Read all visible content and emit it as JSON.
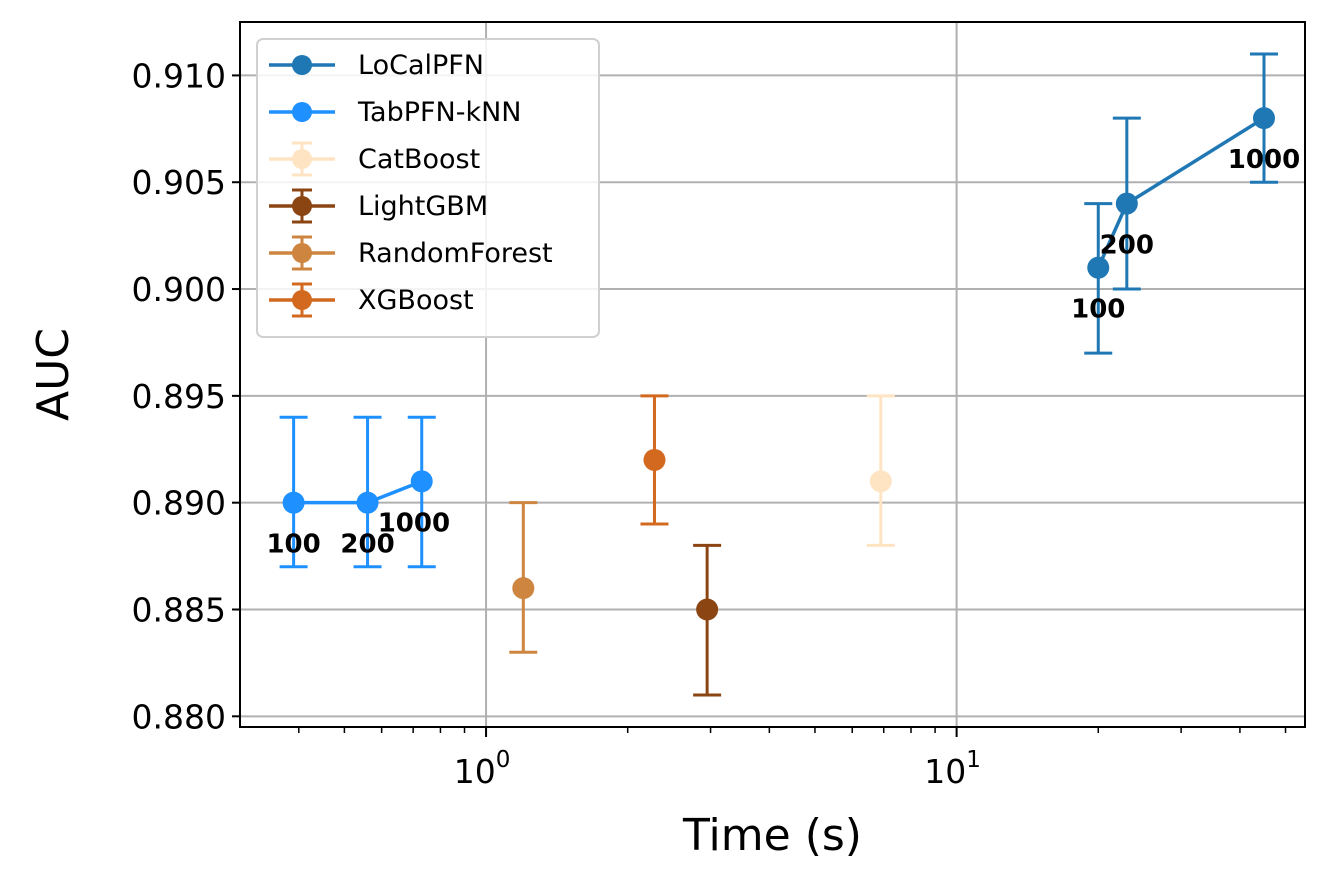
{
  "chart_data": {
    "type": "scatter",
    "xlabel": "Time (s)",
    "ylabel": "AUC",
    "x_scale": "log",
    "xlim": [
      0.3,
      55
    ],
    "ylim": [
      0.8795,
      0.9125
    ],
    "grid": true,
    "legend_position": "top-left",
    "x_ticks": [
      {
        "value": 1,
        "base": "10",
        "exp": "0"
      },
      {
        "value": 10,
        "base": "10",
        "exp": "1"
      }
    ],
    "y_ticks": [
      {
        "value": 0.88,
        "label": "0.880"
      },
      {
        "value": 0.885,
        "label": "0.885"
      },
      {
        "value": 0.89,
        "label": "0.890"
      },
      {
        "value": 0.895,
        "label": "0.895"
      },
      {
        "value": 0.9,
        "label": "0.900"
      },
      {
        "value": 0.905,
        "label": "0.905"
      },
      {
        "value": 0.91,
        "label": "0.910"
      }
    ],
    "series": [
      {
        "name": "LoCalPFN",
        "color": "#1f77b4",
        "connected": true,
        "points": [
          {
            "x": 20,
            "y": 0.901,
            "ylo": 0.897,
            "yhi": 0.904,
            "label": "100",
            "label_pos": "below"
          },
          {
            "x": 23,
            "y": 0.904,
            "ylo": 0.9,
            "yhi": 0.908,
            "label": "200",
            "label_pos": "below"
          },
          {
            "x": 45,
            "y": 0.908,
            "ylo": 0.905,
            "yhi": 0.911,
            "label": "1000",
            "label_pos": "below"
          }
        ]
      },
      {
        "name": "TabPFN-kNN",
        "color": "#1e90ff",
        "connected": true,
        "points": [
          {
            "x": 0.39,
            "y": 0.89,
            "ylo": 0.887,
            "yhi": 0.894,
            "label": "100",
            "label_pos": "below"
          },
          {
            "x": 0.56,
            "y": 0.89,
            "ylo": 0.887,
            "yhi": 0.894,
            "label": "200",
            "label_pos": "below"
          },
          {
            "x": 0.73,
            "y": 0.891,
            "ylo": 0.887,
            "yhi": 0.894,
            "label": "1000",
            "label_pos": "below-right"
          }
        ]
      },
      {
        "name": "CatBoost",
        "color": "#ffe4c4",
        "connected": false,
        "points": [
          {
            "x": 6.9,
            "y": 0.891,
            "ylo": 0.888,
            "yhi": 0.895
          }
        ]
      },
      {
        "name": "LightGBM",
        "color": "#8b4513",
        "connected": false,
        "points": [
          {
            "x": 2.95,
            "y": 0.885,
            "ylo": 0.881,
            "yhi": 0.888
          }
        ]
      },
      {
        "name": "RandomForest",
        "color": "#cd853f",
        "connected": false,
        "points": [
          {
            "x": 1.2,
            "y": 0.886,
            "ylo": 0.883,
            "yhi": 0.89
          }
        ]
      },
      {
        "name": "XGBoost",
        "color": "#d2691e",
        "connected": false,
        "points": [
          {
            "x": 2.28,
            "y": 0.892,
            "ylo": 0.889,
            "yhi": 0.895
          }
        ]
      }
    ]
  }
}
